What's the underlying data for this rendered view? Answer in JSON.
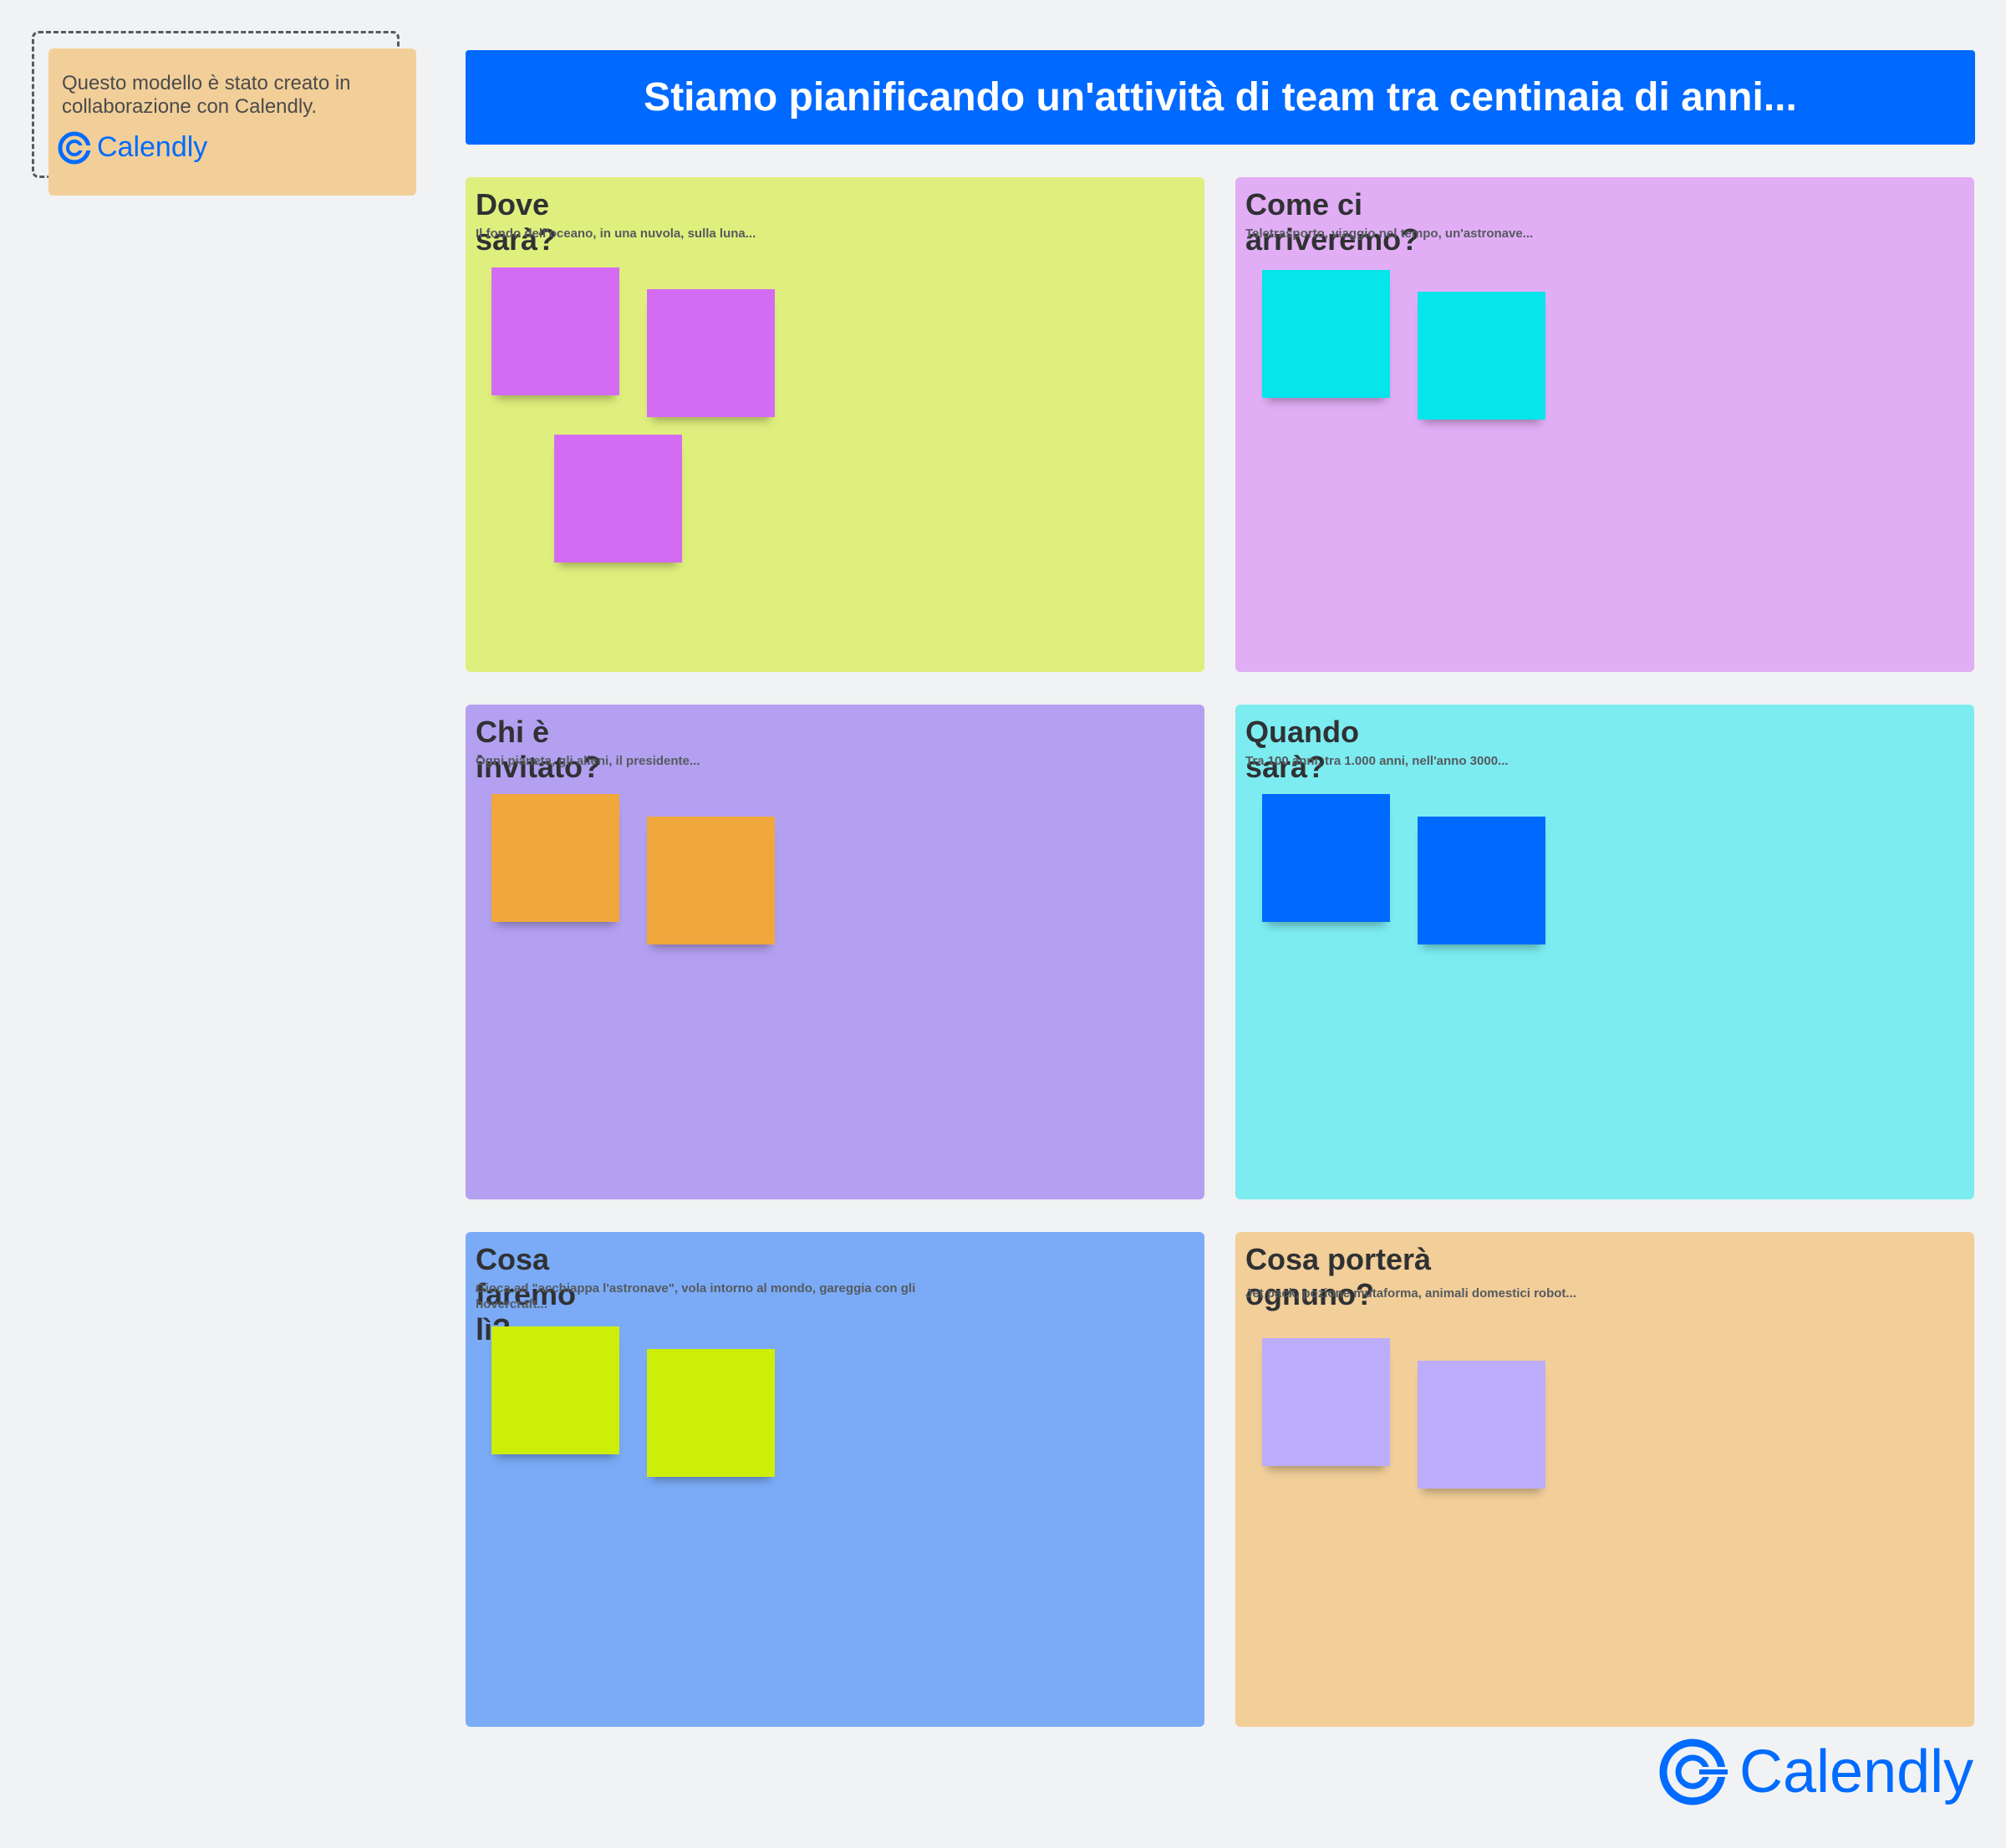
{
  "credit": {
    "text": "Questo modello è stato creato in collaborazione con Calendly.",
    "logo_text": "Calendly"
  },
  "header": {
    "title": "Stiamo pianificando un'attività di team tra centinaia di anni..."
  },
  "frames": [
    {
      "title": "Dove sarà?",
      "subtitle": "Il fondo dell'oceano, in una nuvola, sulla luna...",
      "sticky_color": "#d46cf3",
      "sticky_count": 3
    },
    {
      "title": "Come ci arriveremo?",
      "subtitle": "Teletrasporto, viaggio nel tempo, un'astronave...",
      "sticky_color": "#06e4ec",
      "sticky_count": 2
    },
    {
      "title": "Chi è invitato?",
      "subtitle": "Ogni pianeta, gli alieni, il presidente...",
      "sticky_color": "#f0a83c",
      "sticky_count": 2
    },
    {
      "title": "Quando sarà?",
      "subtitle": "Tra 100 anni, tra 1.000 anni, nell'anno 3000...",
      "sticky_color": "#0069ff",
      "sticky_count": 2
    },
    {
      "title": "Cosa faremo lì?",
      "subtitle": "Gioca ad \"acchiappa l'astronave\", vola intorno al mondo, gareggia con gli hovercraft...",
      "sticky_color": "#cdee07",
      "sticky_count": 2
    },
    {
      "title": "Cosa porterà ognuno?",
      "subtitle": "Jet pack, pozione mutaforma, animali domestici robot...",
      "sticky_color": "#bcadfb",
      "sticky_count": 2
    }
  ],
  "footer": {
    "logo_text": "Calendly"
  },
  "colors": {
    "brand_blue": "#0069ff",
    "logo_blue": "#006bff",
    "background": "#f1f2f4"
  }
}
